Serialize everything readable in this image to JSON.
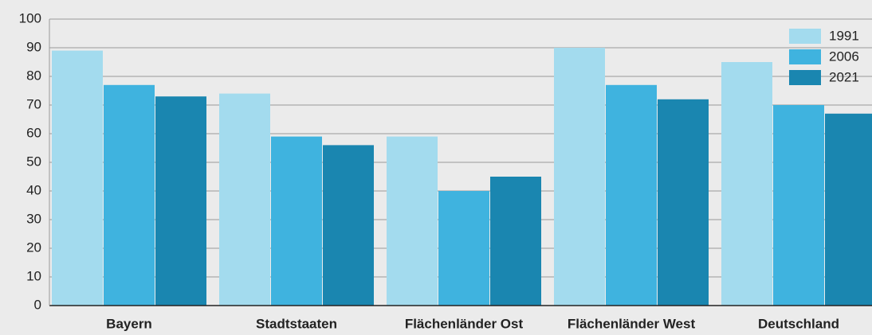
{
  "chart_data": {
    "type": "bar",
    "categories": [
      "Bayern",
      "Stadtstaaten",
      "Flächenländer Ost",
      "Flächenländer West",
      "Deutschland"
    ],
    "series": [
      {
        "name": "1991",
        "color": "#a3dbee",
        "values": [
          89,
          74,
          59,
          90,
          85
        ]
      },
      {
        "name": "2006",
        "color": "#3fb3df",
        "values": [
          77,
          59,
          40,
          77,
          70
        ]
      },
      {
        "name": "2021",
        "color": "#1a86b0",
        "values": [
          73,
          56,
          45,
          72,
          67
        ]
      }
    ],
    "ylim": [
      0,
      100
    ],
    "yticks": [
      0,
      10,
      20,
      30,
      40,
      50,
      60,
      70,
      80,
      90,
      100
    ],
    "grid": true,
    "legend": "top-right"
  }
}
